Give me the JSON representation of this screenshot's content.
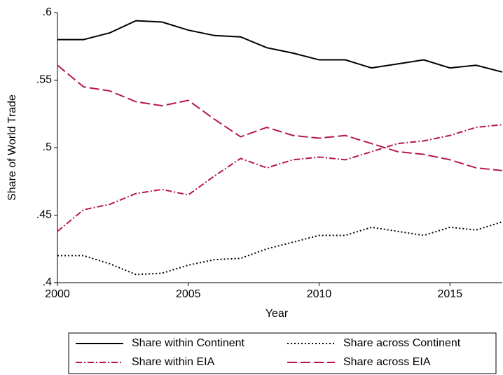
{
  "chart_data": {
    "type": "line",
    "x_label": "Year",
    "y_label": "Share of World Trade",
    "x": [
      2000,
      2001,
      2002,
      2003,
      2004,
      2005,
      2006,
      2007,
      2008,
      2009,
      2010,
      2011,
      2012,
      2013,
      2014,
      2015,
      2016,
      2017
    ],
    "xlim": [
      2000,
      2017
    ],
    "xticks": [
      2000,
      2005,
      2010,
      2015
    ],
    "ylim": [
      0.4,
      0.6
    ],
    "yticks": [
      {
        "value": 0.4,
        "label": ".4"
      },
      {
        "value": 0.45,
        "label": ".45"
      },
      {
        "value": 0.5,
        "label": ".5"
      },
      {
        "value": 0.55,
        "label": ".55"
      },
      {
        "value": 0.6,
        "label": ".6"
      }
    ],
    "grid": false,
    "legend": "bottom",
    "series": [
      {
        "name": "Share within Continent",
        "color": "#000000",
        "dash": "solid",
        "values": [
          0.58,
          0.58,
          0.585,
          0.594,
          0.593,
          0.587,
          0.583,
          0.582,
          0.574,
          0.57,
          0.565,
          0.565,
          0.559,
          0.562,
          0.565,
          0.559,
          0.561,
          0.556
        ]
      },
      {
        "name": "Share across Continent",
        "color": "#000000",
        "dash": "dot",
        "values": [
          0.42,
          0.42,
          0.414,
          0.406,
          0.407,
          0.413,
          0.417,
          0.418,
          0.425,
          0.43,
          0.435,
          0.435,
          0.441,
          0.438,
          0.435,
          0.441,
          0.439,
          0.445
        ]
      },
      {
        "name": "Share within EIA",
        "color": "#b5174a",
        "dash": "dashdot",
        "values": [
          0.438,
          0.454,
          0.458,
          0.466,
          0.469,
          0.465,
          0.479,
          0.492,
          0.485,
          0.491,
          0.493,
          0.491,
          0.497,
          0.503,
          0.505,
          0.509,
          0.515,
          0.517
        ]
      },
      {
        "name": "Share across EIA",
        "color": "#b5174a",
        "dash": "dash",
        "values": [
          0.561,
          0.545,
          0.542,
          0.534,
          0.531,
          0.535,
          0.521,
          0.508,
          0.515,
          0.509,
          0.507,
          0.509,
          0.503,
          0.497,
          0.495,
          0.491,
          0.485,
          0.483
        ]
      }
    ]
  }
}
